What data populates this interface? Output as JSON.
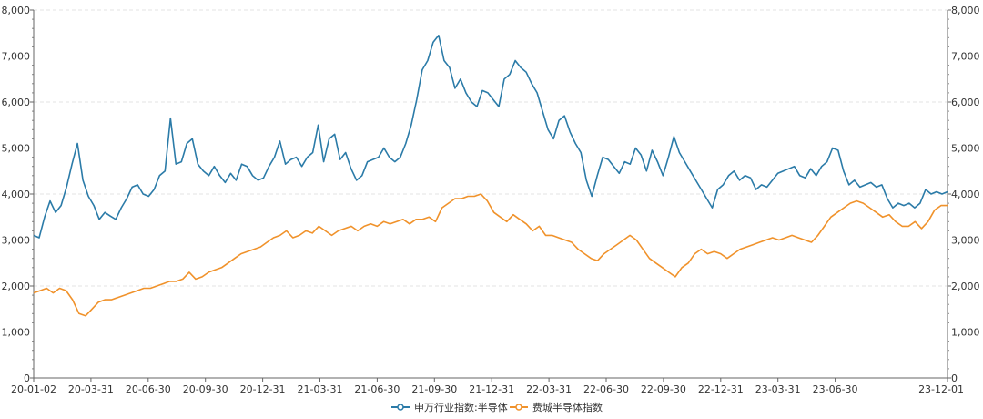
{
  "chart_data": {
    "type": "line",
    "x_ticks": [
      "20-01-02",
      "20-03-31",
      "20-06-30",
      "20-09-30",
      "20-12-31",
      "21-03-31",
      "21-06-30",
      "21-09-30",
      "21-12-31",
      "22-03-31",
      "22-06-30",
      "22-09-30",
      "22-12-31",
      "23-03-31",
      "23-06-30",
      "23-12-01"
    ],
    "y_ticks": [
      "0",
      "1,000",
      "2,000",
      "3,000",
      "4,000",
      "5,000",
      "6,000",
      "7,000",
      "8,000"
    ],
    "ylim": [
      0,
      8000
    ],
    "y2lim": [
      0,
      8000
    ],
    "grid": "horizontal dashed",
    "legend_position": "bottom-center",
    "series": [
      {
        "name": "申万行业指数:半导体",
        "color": "#2b7ba8",
        "axis": "left",
        "values": [
          3100,
          3050,
          3500,
          3850,
          3600,
          3750,
          4150,
          4650,
          5100,
          4300,
          3950,
          3750,
          3450,
          3600,
          3520,
          3450,
          3700,
          3900,
          4150,
          4200,
          4000,
          3950,
          4100,
          4400,
          4500,
          5650,
          4650,
          4700,
          5100,
          5200,
          4650,
          4500,
          4400,
          4600,
          4400,
          4250,
          4450,
          4300,
          4650,
          4600,
          4400,
          4300,
          4350,
          4600,
          4800,
          5150,
          4650,
          4750,
          4800,
          4600,
          4800,
          4900,
          5500,
          4700,
          5200,
          5300,
          4750,
          4900,
          4550,
          4300,
          4400,
          4700,
          4750,
          4800,
          5000,
          4800,
          4700,
          4800,
          5100,
          5500,
          6050,
          6700,
          6900,
          7300,
          7450,
          6900,
          6750,
          6300,
          6500,
          6200,
          6000,
          5900,
          6250,
          6200,
          6050,
          5900,
          6500,
          6600,
          6900,
          6750,
          6650,
          6400,
          6200,
          5800,
          5400,
          5200,
          5600,
          5700,
          5350,
          5100,
          4900,
          4300,
          3950,
          4400,
          4800,
          4750,
          4600,
          4450,
          4700,
          4650,
          5000,
          4850,
          4500,
          4950,
          4700,
          4400,
          4800,
          5250,
          4900,
          4700,
          4500,
          4300,
          4100,
          3900,
          3700,
          4100,
          4200,
          4400,
          4500,
          4300,
          4400,
          4350,
          4100,
          4200,
          4150,
          4300,
          4450,
          4500,
          4550,
          4600,
          4400,
          4350,
          4550,
          4400,
          4600,
          4700,
          5000,
          4950,
          4500,
          4200,
          4300,
          4150,
          4200,
          4250,
          4150,
          4200,
          3900,
          3700,
          3800,
          3750,
          3800,
          3700,
          3800,
          4100,
          4000,
          4050,
          4000,
          4050
        ]
      },
      {
        "name": "费城半导体指数",
        "color": "#f0922b",
        "axis": "right",
        "values": [
          1850,
          1900,
          1950,
          1850,
          1950,
          1900,
          1700,
          1400,
          1350,
          1500,
          1650,
          1700,
          1700,
          1750,
          1800,
          1850,
          1900,
          1950,
          1950,
          2000,
          2050,
          2100,
          2100,
          2150,
          2300,
          2150,
          2200,
          2300,
          2350,
          2400,
          2500,
          2600,
          2700,
          2750,
          2800,
          2850,
          2950,
          3050,
          3100,
          3200,
          3050,
          3100,
          3200,
          3150,
          3300,
          3200,
          3100,
          3200,
          3250,
          3300,
          3200,
          3300,
          3350,
          3300,
          3400,
          3350,
          3400,
          3450,
          3350,
          3450,
          3450,
          3500,
          3400,
          3700,
          3800,
          3900,
          3900,
          3950,
          3950,
          4000,
          3850,
          3600,
          3500,
          3400,
          3550,
          3450,
          3350,
          3200,
          3300,
          3100,
          3100,
          3050,
          3000,
          2950,
          2800,
          2700,
          2600,
          2550,
          2700,
          2800,
          2900,
          3000,
          3100,
          3000,
          2800,
          2600,
          2500,
          2400,
          2300,
          2200,
          2400,
          2500,
          2700,
          2800,
          2700,
          2750,
          2700,
          2600,
          2700,
          2800,
          2850,
          2900,
          2950,
          3000,
          3050,
          3000,
          3050,
          3100,
          3050,
          3000,
          2950,
          3100,
          3300,
          3500,
          3600,
          3700,
          3800,
          3850,
          3800,
          3700,
          3600,
          3500,
          3550,
          3400,
          3300,
          3300,
          3400,
          3250,
          3400,
          3650,
          3750,
          3750
        ]
      }
    ]
  }
}
